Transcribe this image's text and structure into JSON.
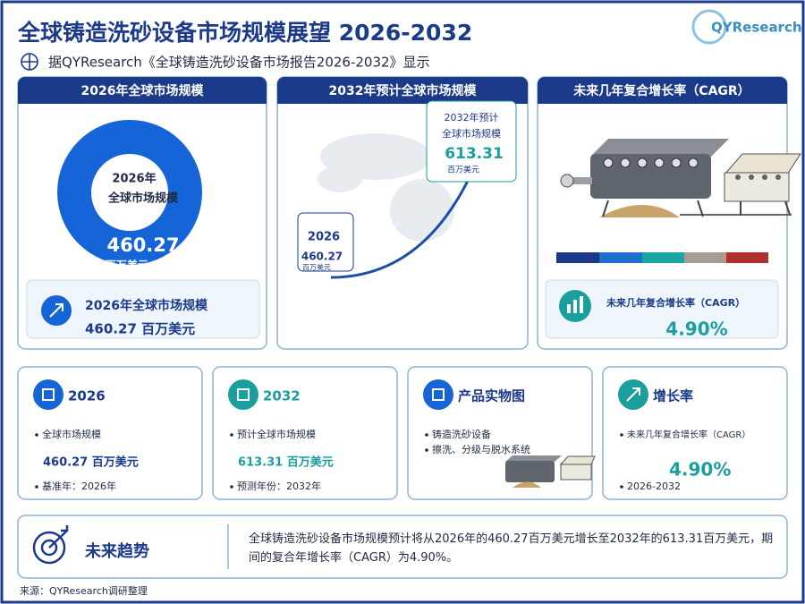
{
  "header": {
    "title": "全球铸造洗砂设备市场规模展望 2026-2032",
    "subtitle": "据QYResearch《全球铸造洗砂设备市场报告2026-2032》显示",
    "logo": "QYResearch"
  },
  "panels": [
    {
      "title": "2026年全球市场规模",
      "center_lines": [
        "2026年",
        "全球市场规模"
      ],
      "center_value": "460.27",
      "center_unit": "百万美元",
      "box_label": "2026年全球市场规模",
      "box_value": "460.27 百万美元"
    },
    {
      "title": "2032年预计全球市场规模",
      "start_year": "2026",
      "start_value": "460.27",
      "start_unit": "百万美元",
      "end_lines": [
        "2032年预计",
        "全球市场规模"
      ],
      "end_value": "613.31",
      "end_unit": "百万美元"
    },
    {
      "title": "未来几年复合增长率（CAGR）",
      "box_label": "未来几年复合增长率（CAGR）",
      "box_value": "4.90%"
    }
  ],
  "cards": [
    {
      "title": "2026",
      "items": [
        "全球市场规模"
      ],
      "value": "460.27 百万美元",
      "note": "基准年：2026年"
    },
    {
      "title": "2032",
      "items": [
        "预计全球市场规模"
      ],
      "value": "613.31 百万美元",
      "note": "预测年份：2032年"
    },
    {
      "title": "产品实物图",
      "items": [
        "铸造洗砂设备",
        "擦洗、分级与脱水系统"
      ]
    },
    {
      "title": "增长率",
      "items": [
        "未来几年复合增长率（CAGR）"
      ],
      "value": "4.90%",
      "note": "2026-2032"
    }
  ],
  "trend": {
    "title": "未来趋势",
    "text": "全球铸造洗砂设备市场规模预计将从2026年的460.27百万美元增长至2032年的613.31百万美元，期间的复合年增长率（CAGR）为4.90%。"
  },
  "source": "来源：QYResearch调研整理"
}
